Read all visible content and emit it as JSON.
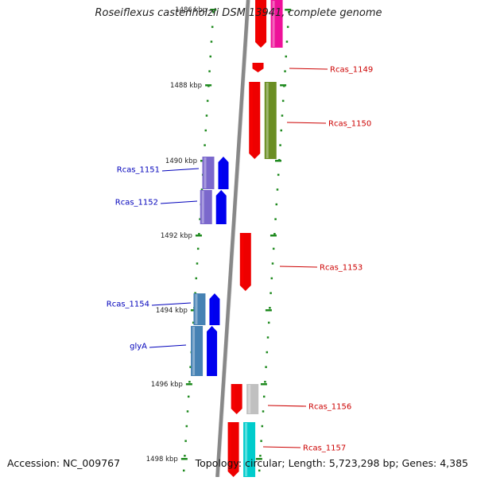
{
  "title": "Roseiflexus castenholzii DSM 13941, complete genome",
  "footer": {
    "accession": "Accession: NC_009767",
    "summary": "Topology: circular; Length: 5,723,298 bp; Genes: 4,385"
  },
  "scale_ticks": [
    "1486 kbp",
    "1488 kbp",
    "1490 kbp",
    "1492 kbp",
    "1494 kbp",
    "1496 kbp",
    "1498 kbp"
  ],
  "colors": {
    "backbone": "#888888",
    "tick": "#1f8a1f",
    "forward_label": "#cc0000",
    "reverse_label": "#0000bb"
  },
  "genes": [
    {
      "name": "",
      "strand": "forward",
      "color": "#ee0000",
      "cog_color": "#ee1199"
    },
    {
      "name": "Rcas_1149",
      "strand": "forward",
      "color": "#ee0000",
      "cog_color": ""
    },
    {
      "name": "Rcas_1150",
      "strand": "forward",
      "color": "#ee0000",
      "cog_color": "#6b8e23"
    },
    {
      "name": "Rcas_1151",
      "strand": "reverse",
      "color": "#0000ee",
      "cog_color": "#7b68cc"
    },
    {
      "name": "Rcas_1152",
      "strand": "reverse",
      "color": "#0000ee",
      "cog_color": "#7b68cc"
    },
    {
      "name": "Rcas_1153",
      "strand": "forward",
      "color": "#ee0000",
      "cog_color": ""
    },
    {
      "name": "Rcas_1154",
      "strand": "reverse",
      "color": "#0000ee",
      "cog_color": "#4682b4"
    },
    {
      "name": "glyA",
      "strand": "reverse",
      "color": "#0000ee",
      "cog_color": "#4682b4"
    },
    {
      "name": "Rcas_1156",
      "strand": "forward",
      "color": "#ee0000",
      "cog_color": "#c0c0c0"
    },
    {
      "name": "Rcas_1157",
      "strand": "forward",
      "color": "#ee0000",
      "cog_color": "#00cccc"
    }
  ]
}
